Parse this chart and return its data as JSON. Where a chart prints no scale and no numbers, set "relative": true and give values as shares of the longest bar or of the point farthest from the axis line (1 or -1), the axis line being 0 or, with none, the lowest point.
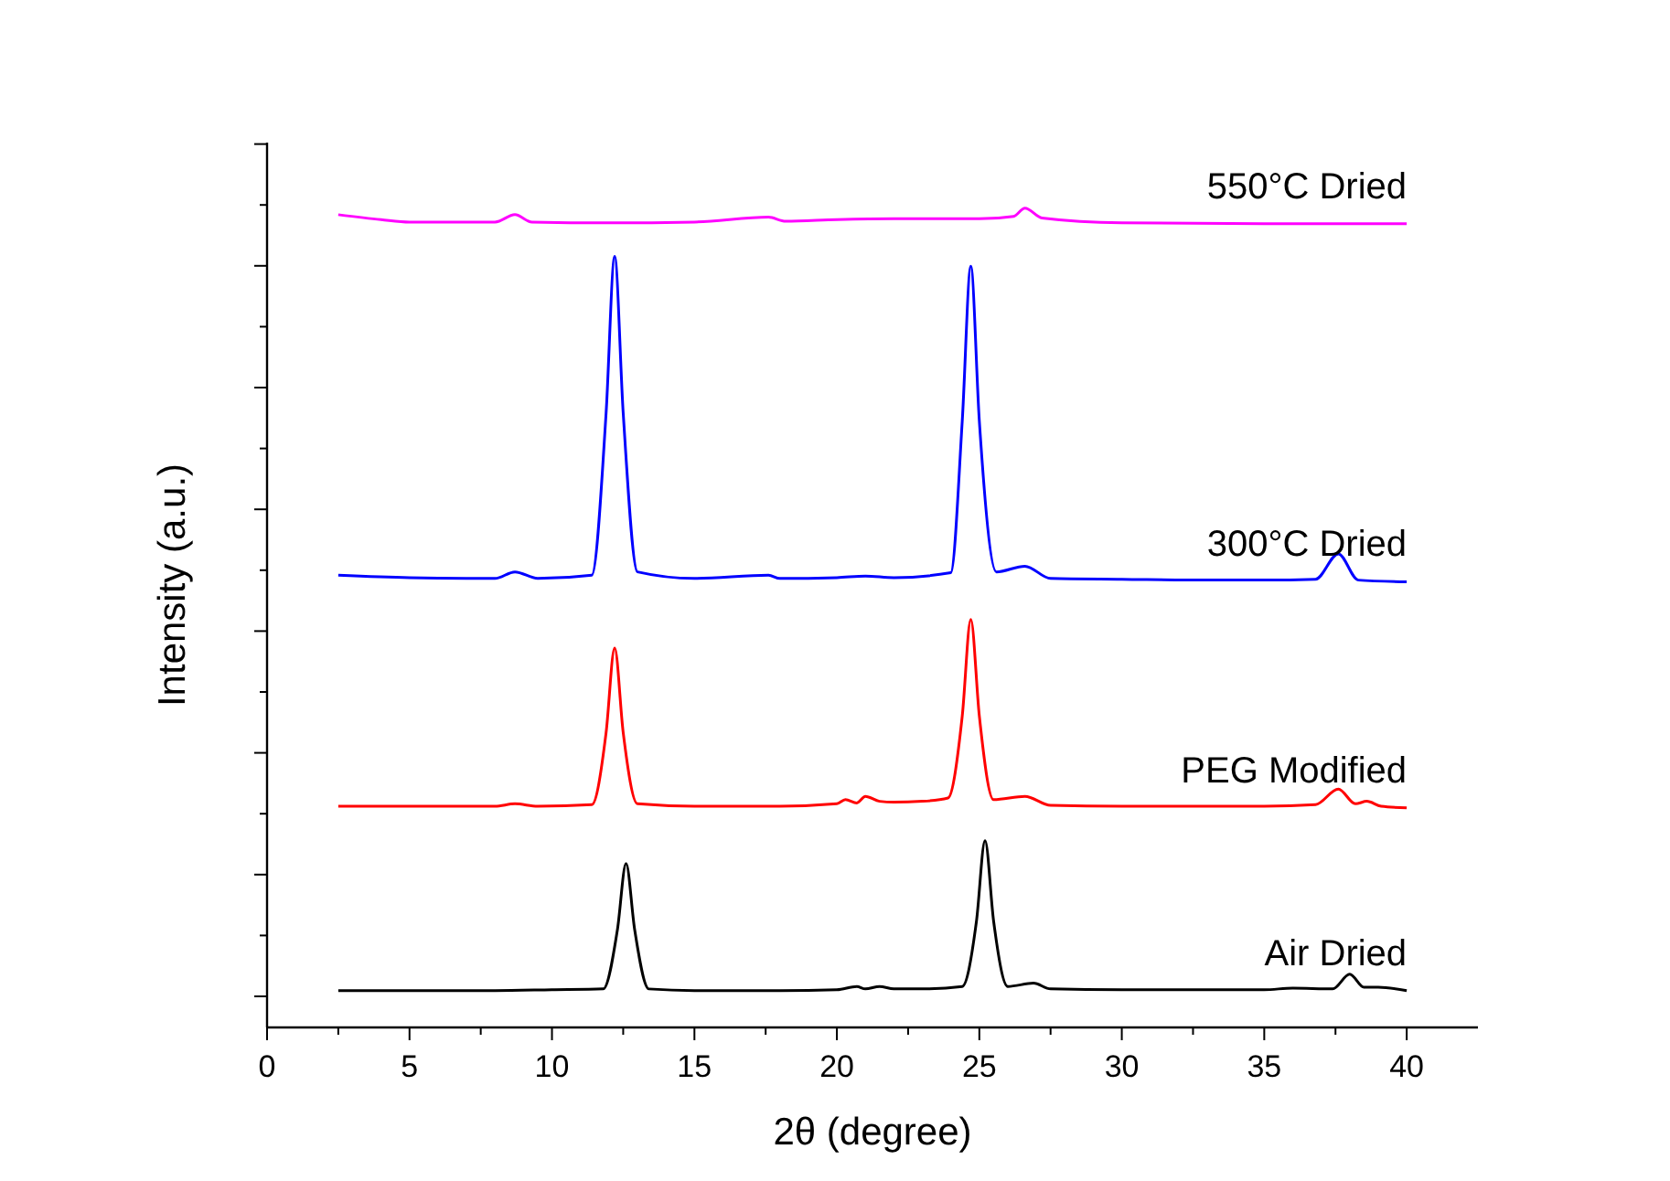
{
  "chart_data": {
    "type": "line",
    "relative": true,
    "xlabel": "2θ (degree)",
    "ylabel": "Intensity (a.u.)",
    "xlim": [
      0,
      42.5
    ],
    "xticks": [
      0,
      5,
      10,
      15,
      20,
      25,
      30,
      35,
      40
    ],
    "tick_labels": "x",
    "grid": false,
    "marker": "none",
    "line_style": "solid",
    "series": [
      {
        "name": "Air Dried",
        "color": "#000000",
        "x": [
          2.5,
          5,
          8,
          10,
          11.8,
          12.3,
          12.6,
          12.9,
          13.4,
          15,
          18,
          20,
          20.7,
          21,
          21.5,
          22,
          23,
          24.4,
          24.9,
          25.2,
          25.5,
          26,
          26.9,
          27.5,
          30,
          33,
          35,
          36,
          37.4,
          38,
          38.5,
          39,
          40
        ],
        "values": [
          0.045,
          0.045,
          0.045,
          0.046,
          0.047,
          0.12,
          0.2,
          0.12,
          0.047,
          0.045,
          0.045,
          0.046,
          0.05,
          0.047,
          0.05,
          0.047,
          0.047,
          0.05,
          0.13,
          0.228,
          0.13,
          0.05,
          0.054,
          0.047,
          0.046,
          0.046,
          0.046,
          0.048,
          0.047,
          0.065,
          0.049,
          0.049,
          0.045
        ]
      },
      {
        "name": "PEG Modified",
        "color": "#ff0000",
        "x": [
          2.5,
          5,
          8,
          8.7,
          9.5,
          11.4,
          11.9,
          12.2,
          12.5,
          13,
          15,
          18,
          20,
          20.3,
          20.7,
          21,
          21.5,
          22,
          23,
          23.9,
          24.4,
          24.7,
          25,
          25.5,
          26.6,
          27.5,
          30,
          33,
          35,
          36.8,
          37.6,
          38.2,
          38.6,
          39.1,
          40
        ],
        "values": [
          0.27,
          0.27,
          0.27,
          0.273,
          0.27,
          0.272,
          0.36,
          0.463,
          0.36,
          0.273,
          0.27,
          0.27,
          0.273,
          0.278,
          0.274,
          0.282,
          0.276,
          0.275,
          0.276,
          0.28,
          0.38,
          0.498,
          0.38,
          0.278,
          0.282,
          0.271,
          0.27,
          0.27,
          0.27,
          0.272,
          0.291,
          0.273,
          0.276,
          0.27,
          0.268
        ]
      },
      {
        "name": "300°C Dried",
        "color": "#0000ff",
        "x": [
          2.5,
          5,
          8,
          8.7,
          9.5,
          11.4,
          11.9,
          12.2,
          12.5,
          13,
          15,
          17.6,
          18,
          20,
          21,
          22,
          24,
          24.4,
          24.7,
          25,
          25.6,
          26.6,
          27.5,
          30,
          33,
          35,
          36.8,
          37.6,
          38.3,
          40
        ],
        "values": [
          0.552,
          0.549,
          0.548,
          0.556,
          0.548,
          0.552,
          0.75,
          0.941,
          0.75,
          0.556,
          0.548,
          0.552,
          0.548,
          0.549,
          0.551,
          0.549,
          0.555,
          0.74,
          0.929,
          0.74,
          0.556,
          0.563,
          0.548,
          0.547,
          0.546,
          0.546,
          0.547,
          0.578,
          0.546,
          0.544
        ]
      },
      {
        "name": "550°C Dried",
        "color": "#ff00ff",
        "x": [
          2.5,
          4,
          5,
          8,
          8.7,
          9.3,
          12,
          15,
          17.6,
          18.2,
          20,
          22,
          25,
          26.2,
          26.6,
          27.2,
          30,
          35,
          40
        ],
        "values": [
          0.992,
          0.986,
          0.983,
          0.983,
          0.992,
          0.983,
          0.982,
          0.983,
          0.989,
          0.984,
          0.986,
          0.987,
          0.987,
          0.99,
          1,
          0.988,
          0.982,
          0.981,
          0.981
        ]
      }
    ]
  }
}
